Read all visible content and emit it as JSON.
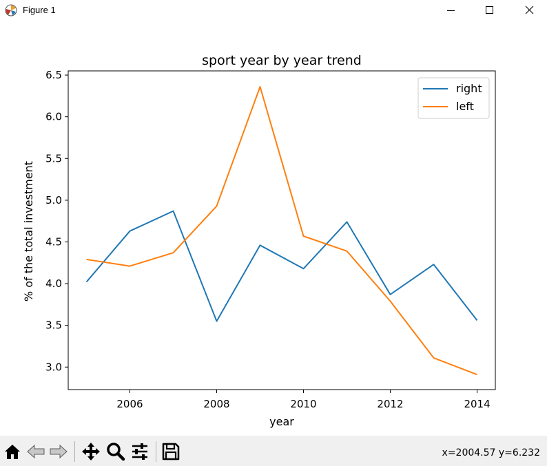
{
  "window": {
    "title": "Figure 1"
  },
  "toolbar": {
    "buttons": [
      "home-icon",
      "back-icon",
      "forward-icon",
      "pan-icon",
      "zoom-icon",
      "configure-subplots-icon",
      "save-icon"
    ],
    "coords": "x=2004.57 y=6.232"
  },
  "chart_data": {
    "type": "line",
    "title": "sport year by year trend",
    "xlabel": "year",
    "ylabel": "% of the total investment",
    "x": [
      2005,
      2006,
      2007,
      2008,
      2009,
      2010,
      2011,
      2012,
      2013,
      2014
    ],
    "xticks": [
      "2006",
      "2008",
      "2010",
      "2012",
      "2014"
    ],
    "yticks": [
      "3.0",
      "3.5",
      "4.0",
      "4.5",
      "5.0",
      "5.5",
      "6.0",
      "6.5"
    ],
    "xlim": [
      2004.58,
      2014.42
    ],
    "ylim": [
      2.73,
      6.55
    ],
    "legend": "top-right",
    "grid": false,
    "series": [
      {
        "name": "right",
        "color": "#1f77b4",
        "values": [
          4.02,
          4.63,
          4.87,
          3.55,
          4.46,
          4.18,
          4.74,
          3.87,
          4.23,
          3.56
        ]
      },
      {
        "name": "left",
        "color": "#ff7f0e",
        "values": [
          4.29,
          4.21,
          4.37,
          4.93,
          6.36,
          4.57,
          4.39,
          3.79,
          3.11,
          2.91
        ]
      }
    ]
  }
}
